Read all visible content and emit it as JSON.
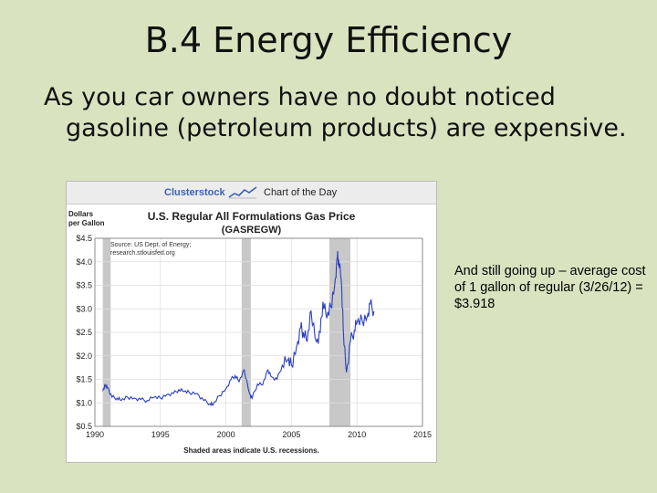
{
  "slide": {
    "title": "B.4 Energy Efficiency",
    "body": "As you car owners have no doubt noticed gasoline (petroleum products) are expensive.",
    "side_note": "And still going up – average cost of 1 gallon of regular (3/26/12) = $3.918",
    "background": "#d9e3bf"
  },
  "chart_header": {
    "brand": "Clusterstock",
    "chart_of_day": "Chart of the Day",
    "brand_color": "#3d63b5"
  },
  "chart_data": {
    "type": "line",
    "title": "U.S. Regular All Formulations Gas Price",
    "subtitle": "(GASREGW)",
    "ylabel_line1": "Dollars",
    "ylabel_line2": "per Gallon",
    "source_line1": "Source: US Dept. of Energy;",
    "source_line2": "research.stlouisfed.org",
    "footnote": "Shaded areas indicate U.S. recessions.",
    "xlim": [
      1990,
      2015
    ],
    "ylim": [
      0.5,
      4.5
    ],
    "xticks": [
      1990,
      1995,
      2000,
      2005,
      2010,
      2015
    ],
    "yticks": [
      0.5,
      1.0,
      1.5,
      2.0,
      2.5,
      3.0,
      3.5,
      4.0,
      4.5
    ],
    "ytick_labels": [
      "$0.5",
      "$1.0",
      "$1.5",
      "$2.0",
      "$2.5",
      "$3.0",
      "$3.5",
      "$4.0",
      "$4.5"
    ],
    "grid": true,
    "line_color": "#2a3fc0",
    "recession_color": "#c8c8c8",
    "recessions": [
      [
        1990.6,
        1991.2
      ],
      [
        2001.2,
        2001.9
      ],
      [
        2007.9,
        2009.5
      ]
    ],
    "series": [
      {
        "x": [
          1990.6,
          1990.8,
          1991.0,
          1991.3,
          1991.7,
          1992.0,
          1992.5,
          1993.0,
          1993.5,
          1994.0,
          1994.5,
          1995.0,
          1995.5,
          1996.0,
          1996.4,
          1996.8,
          1997.2,
          1997.8,
          1998.3,
          1998.8,
          1999.0,
          1999.5,
          2000.0,
          2000.4,
          2000.7,
          2001.0,
          2001.4,
          2001.8,
          2002.0,
          2002.4,
          2002.8,
          2003.2,
          2003.5,
          2003.9,
          2004.3,
          2004.7,
          2005.0,
          2005.4,
          2005.7,
          2005.9,
          2006.2,
          2006.5,
          2006.9,
          2007.2,
          2007.4,
          2007.7,
          2008.0,
          2008.3,
          2008.5,
          2008.6,
          2008.8,
          2008.95,
          2009.2,
          2009.5,
          2009.8,
          2010.0,
          2010.4,
          2010.8,
          2011.0,
          2011.3
        ],
        "y": [
          1.25,
          1.38,
          1.32,
          1.12,
          1.1,
          1.05,
          1.12,
          1.1,
          1.07,
          1.05,
          1.12,
          1.1,
          1.18,
          1.2,
          1.28,
          1.24,
          1.22,
          1.2,
          1.05,
          0.98,
          0.95,
          1.15,
          1.3,
          1.5,
          1.58,
          1.45,
          1.7,
          1.2,
          1.1,
          1.4,
          1.38,
          1.7,
          1.55,
          1.5,
          1.8,
          1.9,
          1.8,
          2.2,
          2.6,
          2.5,
          2.3,
          2.95,
          2.3,
          2.5,
          3.15,
          2.8,
          3.05,
          3.5,
          4.1,
          4.05,
          3.6,
          2.6,
          1.65,
          2.3,
          2.55,
          2.7,
          2.75,
          2.85,
          3.1,
          2.95
        ]
      }
    ]
  }
}
